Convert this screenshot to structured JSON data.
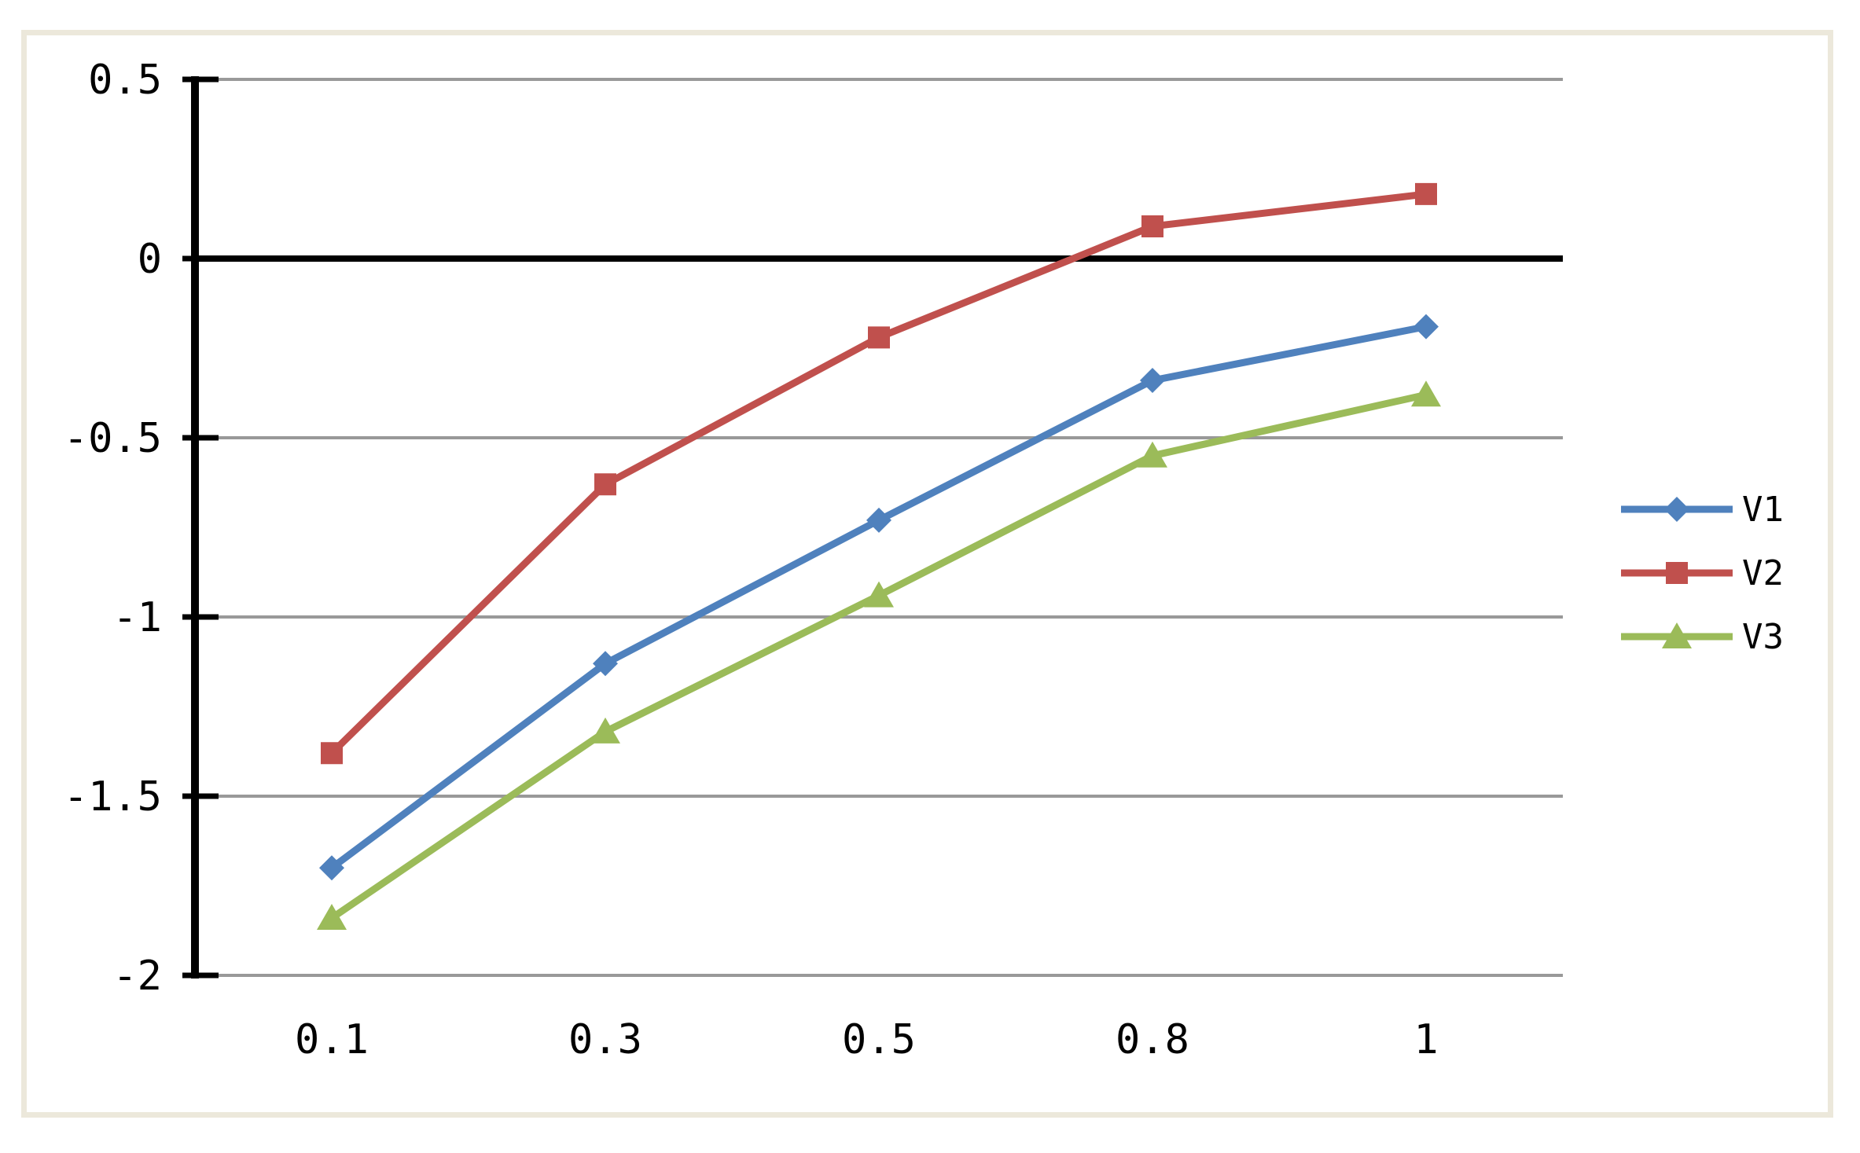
{
  "page": {
    "background_color": "#ffffff",
    "frame_border_color": "#ECE8DB"
  },
  "chart_data": {
    "type": "line",
    "title": "",
    "xlabel": "",
    "ylabel": "",
    "categories": [
      "0.1",
      "0.3",
      "0.5",
      "0.8",
      "1"
    ],
    "series": [
      {
        "name": "V1",
        "color": "#4F81BD",
        "marker": "diamond",
        "values": [
          -1.7,
          -1.13,
          -0.73,
          -0.34,
          -0.19
        ]
      },
      {
        "name": "V2",
        "color": "#C0504D",
        "marker": "square",
        "values": [
          -1.38,
          -0.63,
          -0.22,
          0.09,
          0.18
        ]
      },
      {
        "name": "V3",
        "color": "#9BBB59",
        "marker": "triangle",
        "values": [
          -1.84,
          -1.32,
          -0.94,
          -0.55,
          -0.38
        ]
      }
    ],
    "y_ticks": [
      0.5,
      0,
      -0.5,
      -1,
      -1.5,
      -2
    ],
    "y_tick_labels": [
      "0.5",
      "0",
      "-0.5",
      "-1",
      "-1.5",
      "-2"
    ],
    "ylim": [
      -2,
      0.5
    ],
    "grid": true,
    "gridline_color": "#999999",
    "zero_axis_color": "#000000",
    "axis_color": "#000000",
    "legend_position": "right",
    "legend_labels": [
      "V1",
      "V2",
      "V3"
    ]
  }
}
